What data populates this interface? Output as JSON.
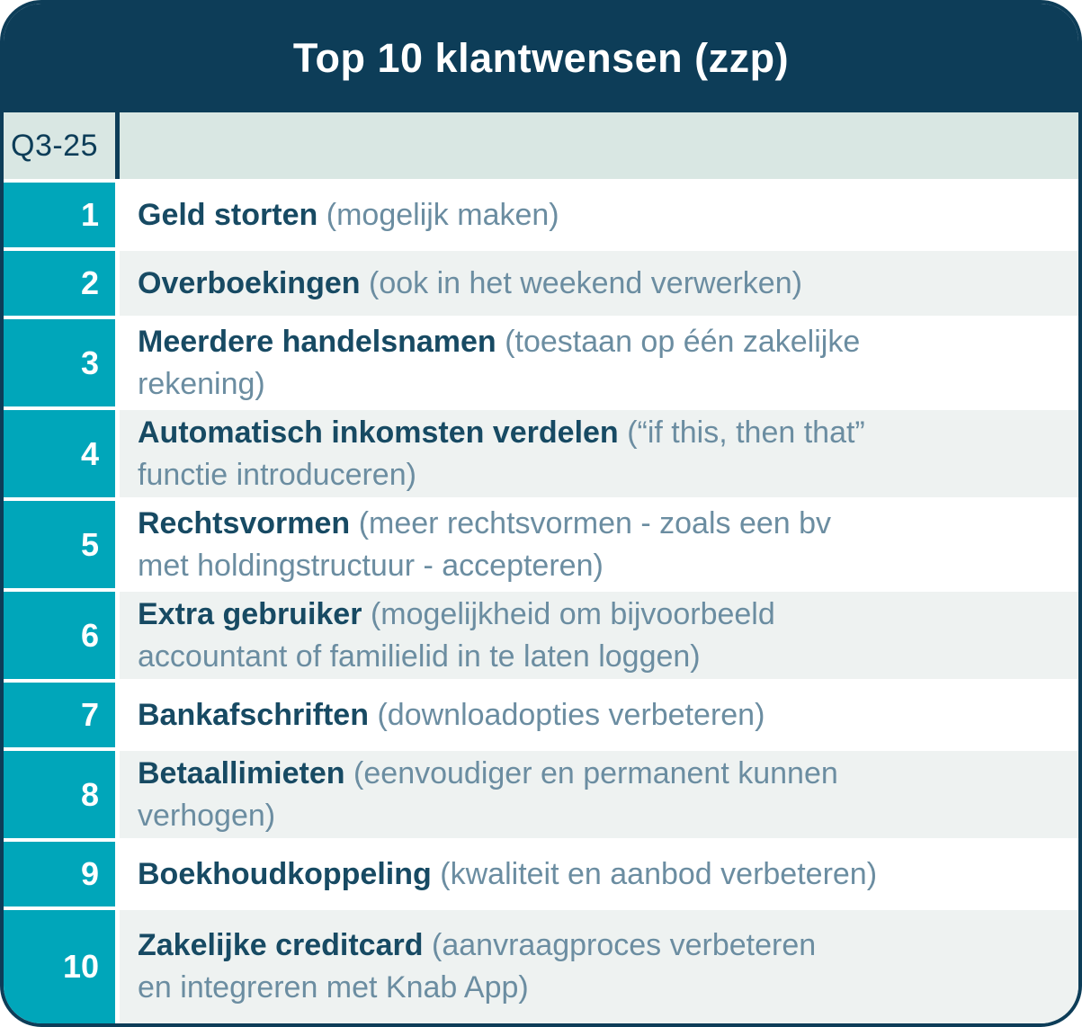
{
  "header": {
    "title": "Top 10 klantwensen (zzp)"
  },
  "period": {
    "label": "Q3-25"
  },
  "rows": [
    {
      "rank": "1",
      "term": "Geld storten",
      "detail": "(mogelijk maken)"
    },
    {
      "rank": "2",
      "term": "Overboekingen",
      "detail": "(ook in het weekend verwerken)"
    },
    {
      "rank": "3",
      "term": "Meerdere handelsnamen",
      "detail": "(toestaan op één zakelijke\nrekening)"
    },
    {
      "rank": "4",
      "term": "Automatisch inkomsten verdelen",
      "detail": "(“if this, then that”\nfunctie introduceren)"
    },
    {
      "rank": "5",
      "term": "Rechtsvormen",
      "detail": "(meer rechtsvormen - zoals een bv\nmet holdingstructuur - accepteren)"
    },
    {
      "rank": "6",
      "term": "Extra gebruiker",
      "detail": "(mogelijkheid om bijvoorbeeld\naccountant of familielid in te laten loggen)"
    },
    {
      "rank": "7",
      "term": "Bankafschriften",
      "detail": "(downloadopties verbeteren)"
    },
    {
      "rank": "8",
      "term": "Betaallimieten",
      "detail": "(eenvoudiger en permanent kunnen\nverhogen)"
    },
    {
      "rank": "9",
      "term": "Boekhoudkoppeling",
      "detail": "(kwaliteit en aanbod verbeteren)"
    },
    {
      "rank": "10",
      "term": "Zakelijke creditcard",
      "detail": "(aanvraagproces verbeteren\nen integreren met Knab App)"
    }
  ],
  "colors": {
    "navy": "#0d3d58",
    "teal": "#00a6ba",
    "period_bg": "#d9e7e3",
    "row_alt": "#eef2f1",
    "row_white": "#ffffff",
    "term": "#174a63",
    "detail": "#6b8da1",
    "title": "#ffffff",
    "rank_text": "#ffffff"
  }
}
